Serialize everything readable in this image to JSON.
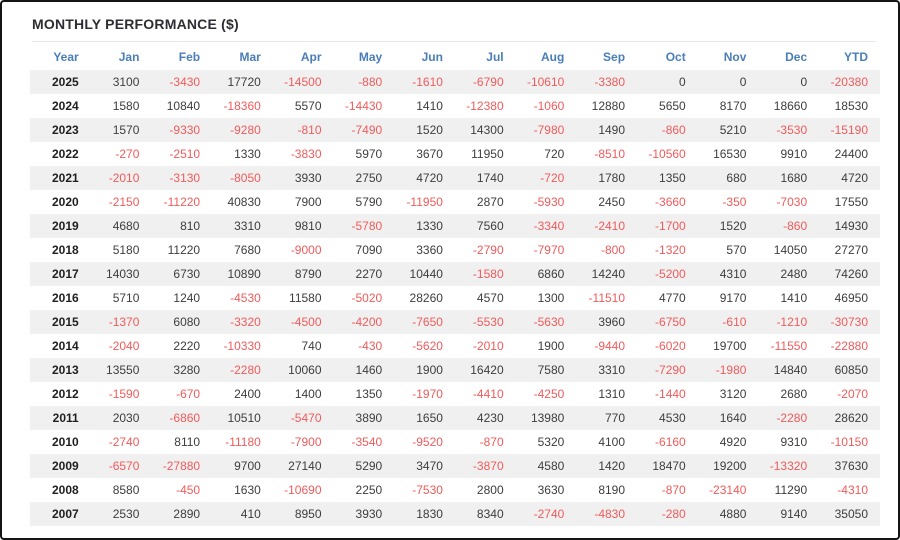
{
  "title": "MONTHLY PERFORMANCE ($)",
  "colors": {
    "frame_border": "#141414",
    "header_text": "#4a7eb8",
    "positive": "#3d3d3d",
    "negative": "#f15b5b",
    "stripe": "#f0f0f0"
  },
  "chart_data": {
    "type": "table",
    "title": "MONTHLY PERFORMANCE ($)",
    "columns": [
      "Year",
      "Jan",
      "Feb",
      "Mar",
      "Apr",
      "May",
      "Jun",
      "Jul",
      "Aug",
      "Sep",
      "Oct",
      "Nov",
      "Dec",
      "YTD"
    ],
    "rows": [
      {
        "year": "2025",
        "values": [
          3100,
          -3430,
          17720,
          -14500,
          -880,
          -1610,
          -6790,
          -10610,
          -3380,
          0,
          0,
          0,
          -20380
        ]
      },
      {
        "year": "2024",
        "values": [
          1580,
          10840,
          -18360,
          5570,
          -14430,
          1410,
          -12380,
          -1060,
          12880,
          5650,
          8170,
          18660,
          18530
        ]
      },
      {
        "year": "2023",
        "values": [
          1570,
          -9330,
          -9280,
          -810,
          -7490,
          1520,
          14300,
          -7980,
          1490,
          -860,
          5210,
          -3530,
          -15190
        ]
      },
      {
        "year": "2022",
        "values": [
          -270,
          -2510,
          1330,
          -3830,
          5970,
          3670,
          11950,
          720,
          -8510,
          -10560,
          16530,
          9910,
          24400
        ]
      },
      {
        "year": "2021",
        "values": [
          -2010,
          -3130,
          -8050,
          3930,
          2750,
          4720,
          1740,
          -720,
          1780,
          1350,
          680,
          1680,
          4720
        ]
      },
      {
        "year": "2020",
        "values": [
          -2150,
          -11220,
          40830,
          7900,
          5790,
          -11950,
          2870,
          -5930,
          2450,
          -3660,
          -350,
          -7030,
          17550
        ]
      },
      {
        "year": "2019",
        "values": [
          4680,
          810,
          3310,
          9810,
          -5780,
          1330,
          7560,
          -3340,
          -2410,
          -1700,
          1520,
          -860,
          14930
        ]
      },
      {
        "year": "2018",
        "values": [
          5180,
          11220,
          7680,
          -9000,
          7090,
          3360,
          -2790,
          -7970,
          -800,
          -1320,
          570,
          14050,
          27270
        ]
      },
      {
        "year": "2017",
        "values": [
          14030,
          6730,
          10890,
          8790,
          2270,
          10440,
          -1580,
          6860,
          14240,
          -5200,
          4310,
          2480,
          74260
        ]
      },
      {
        "year": "2016",
        "values": [
          5710,
          1240,
          -4530,
          11580,
          -5020,
          28260,
          4570,
          1300,
          -11510,
          4770,
          9170,
          1410,
          46950
        ]
      },
      {
        "year": "2015",
        "values": [
          -1370,
          6080,
          -3320,
          -4500,
          -4200,
          -7650,
          -5530,
          -5630,
          3960,
          -6750,
          -610,
          -1210,
          -30730
        ]
      },
      {
        "year": "2014",
        "values": [
          -2040,
          2220,
          -10330,
          740,
          -430,
          -5620,
          -2010,
          1900,
          -9440,
          -6020,
          19700,
          -11550,
          -22880
        ]
      },
      {
        "year": "2013",
        "values": [
          13550,
          3280,
          -2280,
          10060,
          1460,
          1900,
          16420,
          7580,
          3310,
          -7290,
          -1980,
          14840,
          60850
        ]
      },
      {
        "year": "2012",
        "values": [
          -1590,
          -670,
          2400,
          1400,
          1350,
          -1970,
          -4410,
          -4250,
          1310,
          -1440,
          3120,
          2680,
          -2070
        ]
      },
      {
        "year": "2011",
        "values": [
          2030,
          -6860,
          10510,
          -5470,
          3890,
          1650,
          4230,
          13980,
          770,
          4530,
          1640,
          -2280,
          28620
        ]
      },
      {
        "year": "2010",
        "values": [
          -2740,
          8110,
          -11180,
          -7900,
          -3540,
          -9520,
          -870,
          5320,
          4100,
          -6160,
          4920,
          9310,
          -10150
        ]
      },
      {
        "year": "2009",
        "values": [
          -6570,
          -27880,
          9700,
          27140,
          5290,
          3470,
          -3870,
          4580,
          1420,
          18470,
          19200,
          -13320,
          37630
        ]
      },
      {
        "year": "2008",
        "values": [
          8580,
          -450,
          1630,
          -10690,
          2250,
          -7530,
          2800,
          3630,
          8190,
          -870,
          -23140,
          11290,
          -4310
        ]
      },
      {
        "year": "2007",
        "values": [
          2530,
          2890,
          410,
          8950,
          3930,
          1830,
          8340,
          -2740,
          -4830,
          -280,
          4880,
          9140,
          35050
        ]
      }
    ]
  }
}
